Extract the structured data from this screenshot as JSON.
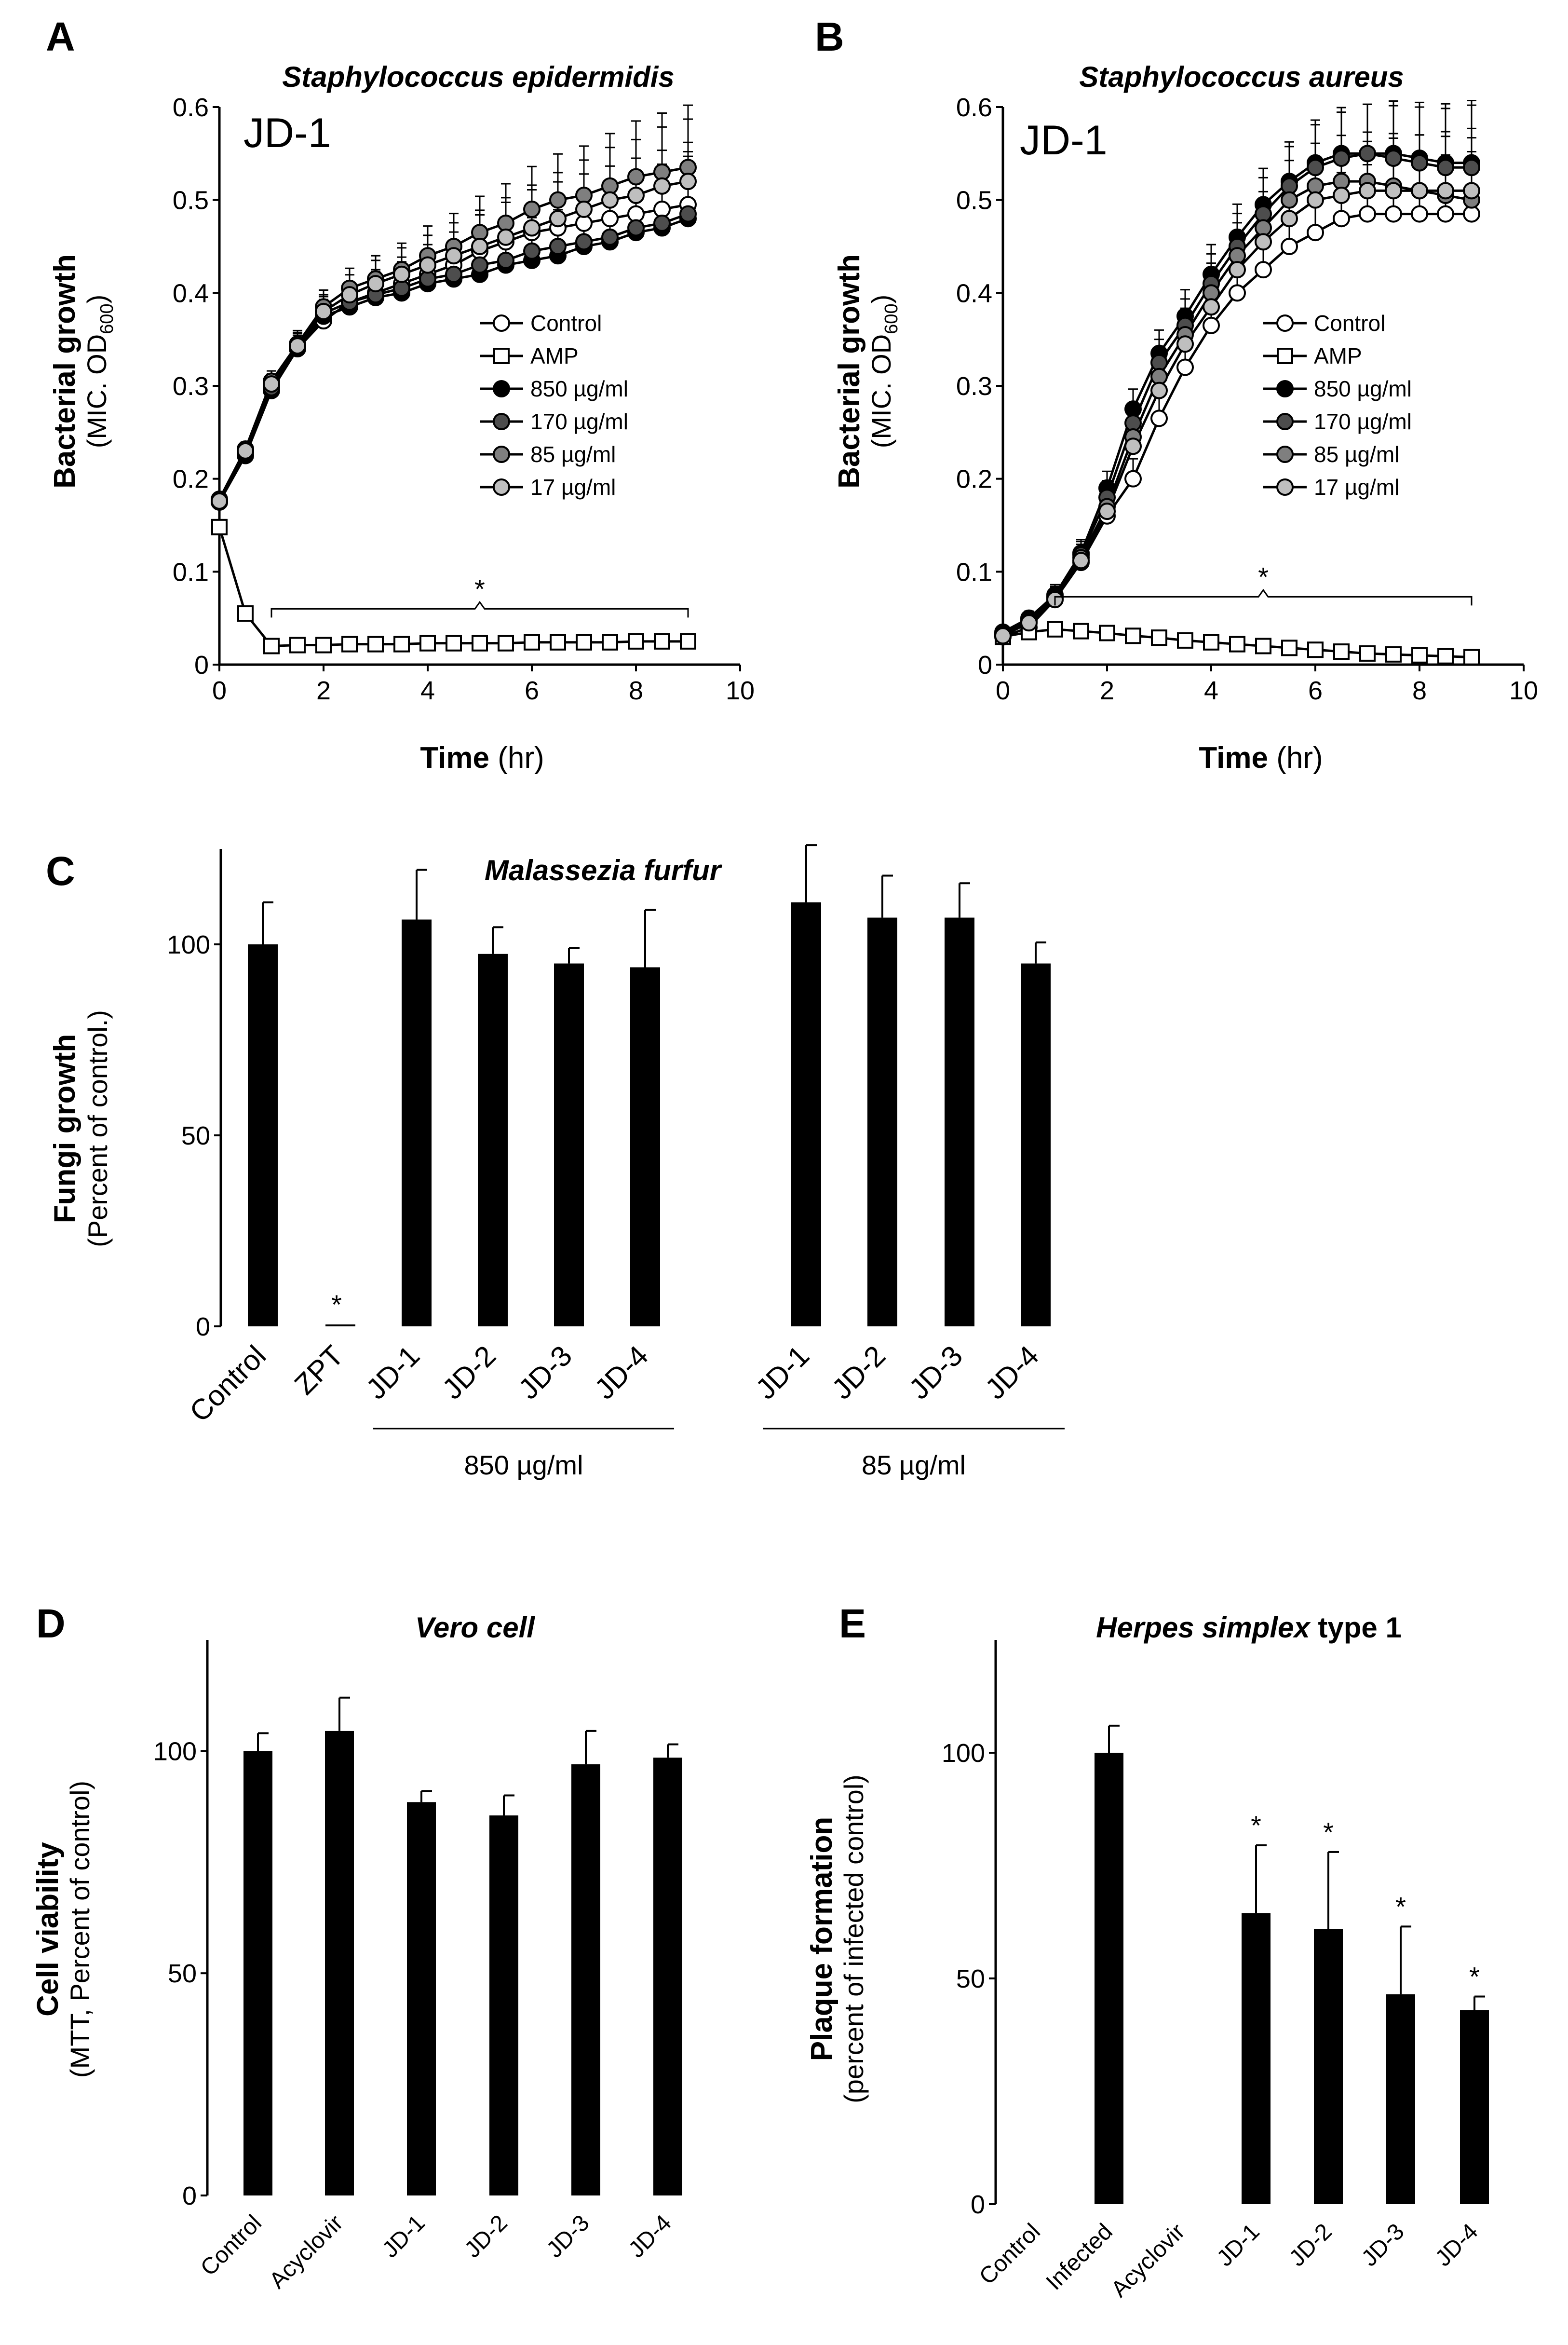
{
  "chart_data": [
    {
      "id": "A",
      "type": "line",
      "panel_letter": "A",
      "title": "Staphylococcus epidermidis",
      "annotation": "JD-1",
      "ylabel": "Bacterial growth",
      "ylabel_sub": "(MIC. OD",
      "ylabel_subscript": "600",
      "ylabel_close": ")",
      "xlabel_bold": "Time",
      "xlabel_unit": " (hr)",
      "xlim": [
        0,
        10
      ],
      "ylim": [
        0,
        0.6
      ],
      "xticks": [
        0,
        2,
        4,
        6,
        8,
        10
      ],
      "yticks": [
        0,
        0.1,
        0.2,
        0.3,
        0.4,
        0.5,
        0.6
      ],
      "significance": "*",
      "bracket_range": [
        1,
        9
      ],
      "series": [
        {
          "name": "Control",
          "marker": "circle",
          "color": "#ffffff",
          "x": [
            0,
            0.5,
            1,
            1.5,
            2,
            2.5,
            3,
            3.5,
            4,
            4.5,
            5,
            5.5,
            6,
            6.5,
            7,
            7.5,
            8,
            8.5,
            9
          ],
          "y": [
            0.175,
            0.23,
            0.3,
            0.34,
            0.37,
            0.39,
            0.4,
            0.41,
            0.42,
            0.43,
            0.445,
            0.455,
            0.465,
            0.47,
            0.475,
            0.48,
            0.485,
            0.49,
            0.495
          ]
        },
        {
          "name": "AMP",
          "marker": "square",
          "color": "#ffffff",
          "x": [
            0,
            0.5,
            1,
            1.5,
            2,
            2.5,
            3,
            3.5,
            4,
            4.5,
            5,
            5.5,
            6,
            6.5,
            7,
            7.5,
            8,
            8.5,
            9
          ],
          "y": [
            0.148,
            0.055,
            0.02,
            0.021,
            0.021,
            0.022,
            0.022,
            0.022,
            0.023,
            0.023,
            0.023,
            0.023,
            0.024,
            0.024,
            0.024,
            0.024,
            0.025,
            0.025,
            0.025
          ]
        },
        {
          "name": "850 µg/ml",
          "marker": "circle",
          "color": "#000000",
          "x": [
            0,
            0.5,
            1,
            1.5,
            2,
            2.5,
            3,
            3.5,
            4,
            4.5,
            5,
            5.5,
            6,
            6.5,
            7,
            7.5,
            8,
            8.5,
            9
          ],
          "y": [
            0.175,
            0.225,
            0.295,
            0.34,
            0.375,
            0.385,
            0.395,
            0.4,
            0.41,
            0.415,
            0.42,
            0.43,
            0.435,
            0.44,
            0.45,
            0.455,
            0.465,
            0.47,
            0.48
          ]
        },
        {
          "name": "170 µg/ml",
          "marker": "circle",
          "color": "#4d4d4d",
          "x": [
            0,
            0.5,
            1,
            1.5,
            2,
            2.5,
            3,
            3.5,
            4,
            4.5,
            5,
            5.5,
            6,
            6.5,
            7,
            7.5,
            8,
            8.5,
            9
          ],
          "y": [
            0.175,
            0.228,
            0.298,
            0.342,
            0.378,
            0.39,
            0.398,
            0.405,
            0.415,
            0.42,
            0.43,
            0.435,
            0.445,
            0.45,
            0.455,
            0.46,
            0.47,
            0.475,
            0.485
          ]
        },
        {
          "name": "85 µg/ml",
          "marker": "circle",
          "color": "#7f7f7f",
          "x": [
            0,
            0.5,
            1,
            1.5,
            2,
            2.5,
            3,
            3.5,
            4,
            4.5,
            5,
            5.5,
            6,
            6.5,
            7,
            7.5,
            8,
            8.5,
            9
          ],
          "y": [
            0.178,
            0.232,
            0.305,
            0.345,
            0.385,
            0.405,
            0.415,
            0.425,
            0.44,
            0.45,
            0.465,
            0.475,
            0.49,
            0.5,
            0.505,
            0.515,
            0.525,
            0.53,
            0.535
          ]
        },
        {
          "name": "17 µg/ml",
          "marker": "circle",
          "color": "#bfbfbf",
          "x": [
            0,
            0.5,
            1,
            1.5,
            2,
            2.5,
            3,
            3.5,
            4,
            4.5,
            5,
            5.5,
            6,
            6.5,
            7,
            7.5,
            8,
            8.5,
            9
          ],
          "y": [
            0.176,
            0.23,
            0.302,
            0.343,
            0.38,
            0.398,
            0.41,
            0.42,
            0.43,
            0.44,
            0.45,
            0.46,
            0.47,
            0.48,
            0.49,
            0.5,
            0.505,
            0.515,
            0.52
          ]
        }
      ]
    },
    {
      "id": "B",
      "type": "line",
      "panel_letter": "B",
      "title": "Staphylococcus aureus",
      "annotation": "JD-1",
      "ylabel": "Bacterial growth",
      "ylabel_sub": "(MIC. OD",
      "ylabel_subscript": "600",
      "ylabel_close": ")",
      "xlabel_bold": "Time",
      "xlabel_unit": " (hr)",
      "xlim": [
        0,
        10
      ],
      "ylim": [
        0,
        0.6
      ],
      "xticks": [
        0,
        2,
        4,
        6,
        8,
        10
      ],
      "yticks": [
        0,
        0.1,
        0.2,
        0.3,
        0.4,
        0.5,
        0.6
      ],
      "significance": "*",
      "bracket_range": [
        1,
        9
      ],
      "series": [
        {
          "name": "Control",
          "marker": "circle",
          "color": "#ffffff",
          "x": [
            0,
            0.5,
            1,
            1.5,
            2,
            2.5,
            3,
            3.5,
            4,
            4.5,
            5,
            5.5,
            6,
            6.5,
            7,
            7.5,
            8,
            8.5,
            9
          ],
          "y": [
            0.03,
            0.04,
            0.07,
            0.11,
            0.16,
            0.2,
            0.265,
            0.32,
            0.365,
            0.4,
            0.425,
            0.45,
            0.465,
            0.48,
            0.485,
            0.485,
            0.485,
            0.485,
            0.485
          ]
        },
        {
          "name": "AMP",
          "marker": "square",
          "color": "#ffffff",
          "x": [
            0,
            0.5,
            1,
            1.5,
            2,
            2.5,
            3,
            3.5,
            4,
            4.5,
            5,
            5.5,
            6,
            6.5,
            7,
            7.5,
            8,
            8.5,
            9
          ],
          "y": [
            0.03,
            0.035,
            0.038,
            0.036,
            0.034,
            0.031,
            0.029,
            0.026,
            0.024,
            0.022,
            0.02,
            0.018,
            0.016,
            0.014,
            0.012,
            0.011,
            0.01,
            0.009,
            0.008
          ]
        },
        {
          "name": "850 µg/ml",
          "marker": "circle",
          "color": "#000000",
          "x": [
            0,
            0.5,
            1,
            1.5,
            2,
            2.5,
            3,
            3.5,
            4,
            4.5,
            5,
            5.5,
            6,
            6.5,
            7,
            7.5,
            8,
            8.5,
            9
          ],
          "y": [
            0.035,
            0.05,
            0.075,
            0.12,
            0.19,
            0.275,
            0.335,
            0.375,
            0.42,
            0.46,
            0.495,
            0.52,
            0.54,
            0.55,
            0.55,
            0.55,
            0.545,
            0.54,
            0.54
          ]
        },
        {
          "name": "170 µg/ml",
          "marker": "circle",
          "color": "#4d4d4d",
          "x": [
            0,
            0.5,
            1,
            1.5,
            2,
            2.5,
            3,
            3.5,
            4,
            4.5,
            5,
            5.5,
            6,
            6.5,
            7,
            7.5,
            8,
            8.5,
            9
          ],
          "y": [
            0.033,
            0.048,
            0.073,
            0.118,
            0.18,
            0.26,
            0.325,
            0.365,
            0.41,
            0.45,
            0.485,
            0.515,
            0.535,
            0.545,
            0.55,
            0.545,
            0.54,
            0.535,
            0.535
          ]
        },
        {
          "name": "85 µg/ml",
          "marker": "circle",
          "color": "#7f7f7f",
          "x": [
            0,
            0.5,
            1,
            1.5,
            2,
            2.5,
            3,
            3.5,
            4,
            4.5,
            5,
            5.5,
            6,
            6.5,
            7,
            7.5,
            8,
            8.5,
            9
          ],
          "y": [
            0.032,
            0.046,
            0.072,
            0.115,
            0.17,
            0.245,
            0.31,
            0.355,
            0.4,
            0.44,
            0.47,
            0.5,
            0.515,
            0.52,
            0.52,
            0.515,
            0.51,
            0.505,
            0.5
          ]
        },
        {
          "name": "17 µg/ml",
          "marker": "circle",
          "color": "#bfbfbf",
          "x": [
            0,
            0.5,
            1,
            1.5,
            2,
            2.5,
            3,
            3.5,
            4,
            4.5,
            5,
            5.5,
            6,
            6.5,
            7,
            7.5,
            8,
            8.5,
            9
          ],
          "y": [
            0.031,
            0.045,
            0.07,
            0.112,
            0.165,
            0.235,
            0.295,
            0.345,
            0.385,
            0.425,
            0.455,
            0.48,
            0.5,
            0.505,
            0.51,
            0.51,
            0.51,
            0.51,
            0.51
          ]
        }
      ]
    },
    {
      "id": "C",
      "type": "bar",
      "panel_letter": "C",
      "title": "Malassezia furfur",
      "ylabel": "Fungi growth",
      "ylabel_sub": "(Percent of control.)",
      "ylim": [
        0,
        125
      ],
      "yticks": [
        0,
        50,
        100
      ],
      "categories": [
        "Control",
        "ZPT",
        "JD-1",
        "JD-2",
        "JD-3",
        "JD-4",
        "JD-1",
        "JD-2",
        "JD-3",
        "JD-4"
      ],
      "values": [
        100,
        0.5,
        106.5,
        97.5,
        95,
        94,
        111,
        107,
        107,
        95
      ],
      "errors": [
        11,
        0,
        13,
        7,
        4,
        15,
        15,
        11,
        9,
        5.5
      ],
      "significance": [
        "",
        "*",
        "",
        "",
        "",
        "",
        "",
        "",
        "",
        ""
      ],
      "groups": [
        {
          "label": "850 µg/ml",
          "from": 2,
          "to": 5
        },
        {
          "label": "85 µg/ml",
          "from": 6,
          "to": 9
        }
      ]
    },
    {
      "id": "D",
      "type": "bar",
      "panel_letter": "D",
      "title": "Vero cell",
      "ylabel": "Cell viability",
      "ylabel_sub": "(MTT, Percent of control)",
      "ylim": [
        0,
        125
      ],
      "yticks": [
        0,
        50,
        100
      ],
      "categories": [
        "Control",
        "Acyclovir",
        "JD-1",
        "JD-2",
        "JD-3",
        "JD-4"
      ],
      "values": [
        100,
        104.5,
        88.5,
        85.5,
        97,
        98.5
      ],
      "errors": [
        4,
        7.5,
        2.5,
        4.5,
        7.5,
        3
      ],
      "significance": [
        "",
        "",
        "",
        "",
        "",
        ""
      ]
    },
    {
      "id": "E",
      "type": "bar",
      "panel_letter": "E",
      "title_italic": "Herpes simplex",
      "title_rest": " type 1",
      "ylabel": "Plaque formation",
      "ylabel_sub": "(percent of infected control)",
      "ylim": [
        0,
        125
      ],
      "yticks": [
        0,
        50,
        100
      ],
      "categories": [
        "Control",
        "Infected",
        "Acyclovir",
        "JD-1",
        "JD-2",
        "JD-3",
        "JD-4"
      ],
      "values": [
        0,
        100,
        0,
        64.5,
        61,
        46.5,
        43
      ],
      "errors": [
        0,
        6,
        0,
        15,
        17,
        15,
        3
      ],
      "significance": [
        "",
        "",
        "",
        "*",
        "*",
        "*",
        "*"
      ]
    }
  ]
}
